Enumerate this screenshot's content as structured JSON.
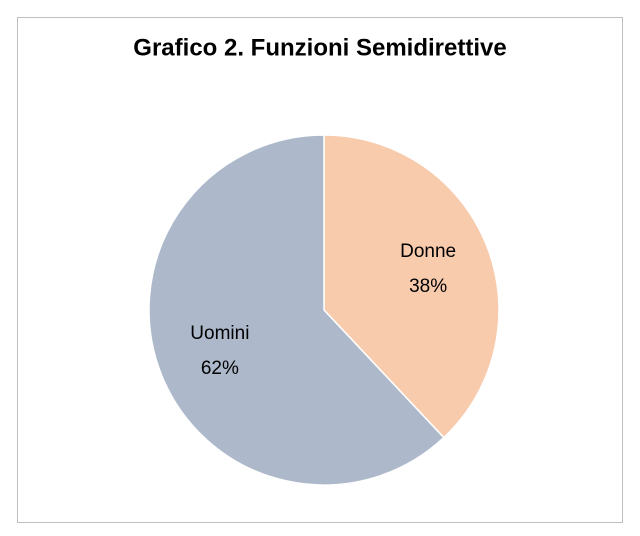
{
  "chart_data": {
    "type": "pie",
    "title": "Grafico 2. Funzioni Semidirettive",
    "categories": [
      "Donne",
      "Uomini"
    ],
    "values": [
      38,
      62
    ],
    "value_labels": [
      "38%",
      "62%"
    ],
    "colors": [
      "#f8cbad",
      "#adb9ca"
    ]
  }
}
